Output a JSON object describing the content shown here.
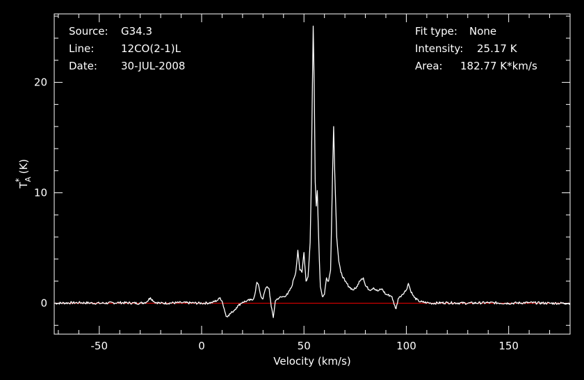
{
  "colors": {
    "background": "#000000",
    "foreground": "#ffffff",
    "baseline": "#cc0000"
  },
  "info_left": {
    "source_label": "Source:",
    "source_value": "G34.3",
    "line_label": "Line:",
    "line_value": "12CO(2-1)L",
    "date_label": "Date:",
    "date_value": "30-JUL-2008"
  },
  "info_right": {
    "fit_label": "Fit type:",
    "fit_value": "None",
    "intensity_label": "Intensity:",
    "intensity_value": "25.17 K",
    "area_label": "Area:",
    "area_value": "182.77 K*km/s"
  },
  "chart_data": {
    "type": "line",
    "xlabel": "Velocity (km/s)",
    "ylabel": "T*A (K)",
    "ylabel_main": "T",
    "ylabel_sup": "*",
    "ylabel_sub": "A",
    "ylabel_unit": "(K)",
    "xlim": [
      -72,
      180
    ],
    "ylim": [
      -2.8,
      26.2
    ],
    "xticks": [
      -50,
      0,
      50,
      100,
      150
    ],
    "xtick_labels": [
      "-50",
      "0",
      "50",
      "100",
      "150"
    ],
    "yticks": [
      0,
      10,
      20
    ],
    "ytick_labels": [
      "0",
      "10",
      "20"
    ],
    "grid": false,
    "baseline": 0,
    "series": [
      {
        "color": "#ffffff",
        "x": [
          -72,
          -60,
          -50,
          -40,
          -30,
          -27,
          -25,
          -23,
          -20,
          -10,
          0,
          5,
          8,
          9,
          10,
          11,
          12,
          13,
          15,
          17,
          18,
          19,
          20,
          22,
          24,
          25,
          26,
          27,
          28,
          29,
          30,
          31,
          32,
          33,
          34,
          35,
          36,
          37,
          38,
          40,
          42,
          44,
          45,
          46,
          47,
          48,
          49,
          50,
          51,
          52,
          53,
          53.5,
          54,
          54.5,
          55,
          55.5,
          56,
          56.5,
          57,
          57.5,
          58,
          59,
          60,
          61,
          62,
          63,
          64,
          64.5,
          65,
          66,
          67,
          68,
          70,
          72,
          74,
          76,
          77,
          78,
          79,
          80,
          82,
          84,
          86,
          88,
          90,
          92,
          93,
          94,
          95,
          96,
          97,
          98,
          100,
          101,
          102,
          103,
          104,
          106,
          108,
          110,
          112,
          120,
          130,
          140,
          150,
          160,
          170,
          180
        ],
        "y": [
          0.0,
          0.05,
          0.0,
          0.05,
          0.0,
          0.1,
          0.5,
          0.1,
          0.0,
          0.05,
          0.0,
          0.05,
          0.3,
          0.5,
          0.2,
          -0.5,
          -1.2,
          -1.1,
          -0.8,
          -0.4,
          -0.2,
          -0.05,
          0.1,
          0.2,
          0.3,
          0.3,
          0.8,
          1.9,
          1.5,
          0.6,
          0.4,
          1.2,
          1.5,
          1.3,
          -0.3,
          -1.3,
          0.2,
          0.4,
          0.5,
          0.6,
          0.8,
          1.5,
          2.2,
          2.8,
          4.8,
          3.0,
          2.8,
          4.6,
          2.0,
          2.4,
          5.5,
          10.0,
          18.0,
          25.1,
          20.0,
          11.0,
          8.8,
          10.2,
          7.0,
          4.0,
          1.5,
          0.6,
          0.8,
          2.3,
          2.0,
          3.0,
          12.0,
          16.0,
          12.0,
          6.0,
          3.8,
          2.8,
          2.0,
          1.5,
          1.2,
          1.5,
          2.0,
          2.2,
          2.3,
          1.6,
          1.2,
          1.4,
          1.1,
          1.3,
          0.8,
          0.7,
          0.6,
          -0.1,
          -0.5,
          0.4,
          0.6,
          0.8,
          1.2,
          1.8,
          1.2,
          0.8,
          0.5,
          0.2,
          0.1,
          0.05,
          0.0,
          0.05,
          0.0,
          0.05,
          0.0,
          0.05,
          0.0,
          0.0
        ]
      }
    ]
  }
}
